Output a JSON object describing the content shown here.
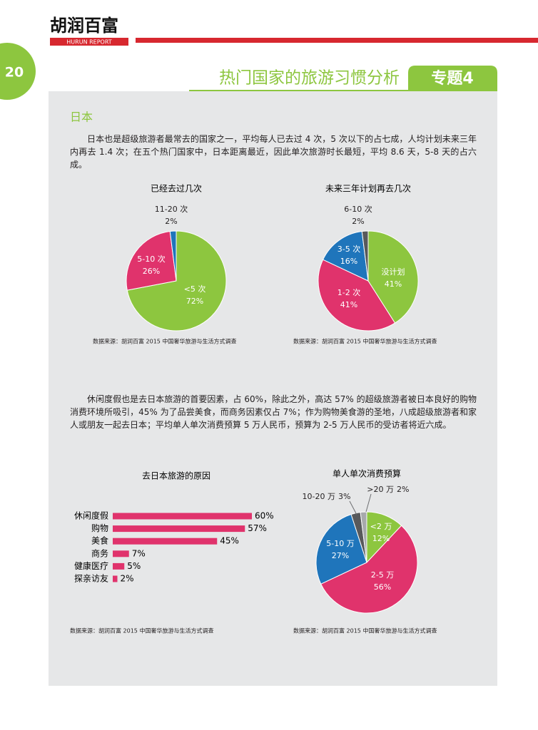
{
  "header": {
    "logo": "胡润百富",
    "logo_sub": "HURUN REPORT"
  },
  "page_number": "20",
  "title": "热门国家的旅游习惯分析",
  "tab": "专题4",
  "section": "日本",
  "paragraphs": [
    "日本也是超级旅游者最常去的国家之一，平均每人已去过 4 次，5 次以下的占七成，人均计划未来三年内再去 1.4 次；在五个热门国家中，日本距离最近，因此单次旅游时长最短，平均 8.6 天，5-8 天的占六成。",
    "休闲度假也是去日本旅游的首要因素，占 60%，除此之外，高达 57% 的超级旅游者被日本良好的购物消费环境所吸引，45% 为了品尝美食，而商务因素仅占 7%；作为购物美食游的圣地，八成超级旅游者和家人或朋友一起去日本；平均单人单次消费预算 5 万人民币，预算为 2-5 万人民币的受访者将近六成。"
  ],
  "chart_data": [
    {
      "type": "pie",
      "title": "已经去过几次",
      "categories": [
        "<5 次",
        "5-10 次",
        "11-20 次"
      ],
      "values": [
        72,
        26,
        2
      ],
      "value_labels": [
        "72%",
        "26%",
        "2%"
      ],
      "colors": [
        "#8dc63f",
        "#e0336c",
        "#1f75bb"
      ],
      "source": "数据来源：胡润百富 2015 中国奢华旅游与生活方式调查"
    },
    {
      "type": "pie",
      "title": "未来三年计划再去几次",
      "categories": [
        "没计划",
        "1-2 次",
        "3-5 次",
        "6-10 次"
      ],
      "values": [
        41,
        41,
        16,
        2
      ],
      "value_labels": [
        "41%",
        "41%",
        "16%",
        "2%"
      ],
      "colors": [
        "#8dc63f",
        "#e0336c",
        "#1f75bb",
        "#58595b"
      ],
      "source": "数据来源：胡润百富 2015 中国奢华旅游与生活方式调查"
    },
    {
      "type": "bar",
      "orientation": "horizontal",
      "title": "去日本旅游的原因",
      "categories": [
        "休闲度假",
        "购物",
        "美食",
        "商务",
        "健康医疗",
        "探亲访友"
      ],
      "values": [
        60,
        57,
        45,
        7,
        5,
        2
      ],
      "value_labels": [
        "60%",
        "57%",
        "45%",
        "7%",
        "5%",
        "2%"
      ],
      "color": "#e0336c",
      "source": "数据来源：胡润百富 2015 中国奢华旅游与生活方式调查"
    },
    {
      "type": "pie",
      "title": "单人单次消费预算",
      "categories": [
        "<2 万",
        "2-5 万",
        "5-10 万",
        "10-20 万",
        ">20 万"
      ],
      "values": [
        12,
        56,
        27,
        3,
        2
      ],
      "value_labels": [
        "12%",
        "56%",
        "27%",
        "3%",
        "2%"
      ],
      "colors": [
        "#8dc63f",
        "#e0336c",
        "#1f75bb",
        "#58595b",
        "#a7a9ac"
      ],
      "source": "数据来源：胡润百富 2015 中国奢华旅游与生活方式调查"
    }
  ]
}
